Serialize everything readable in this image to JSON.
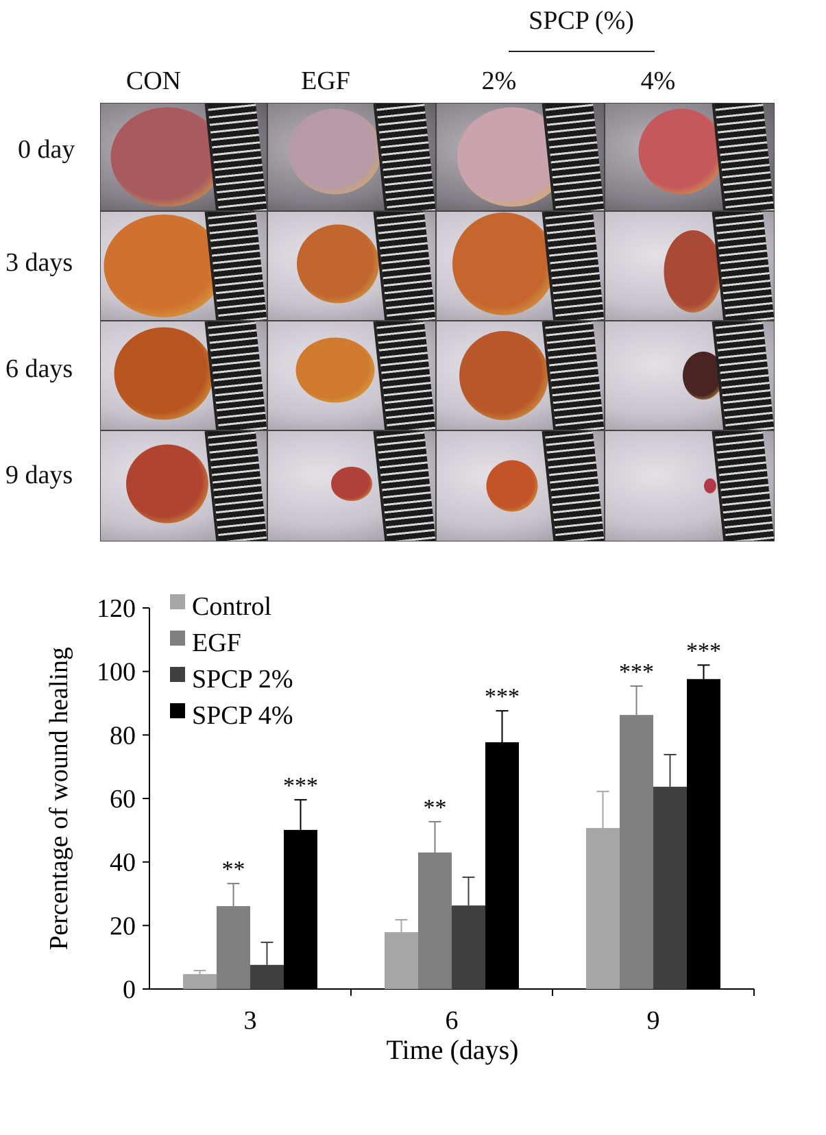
{
  "photo_panel": {
    "group_header": "SPCP (%)",
    "columns": [
      "CON",
      "EGF",
      "2%",
      "4%"
    ],
    "rows": [
      "0 day",
      "3 days",
      "6 days",
      "9 days"
    ]
  },
  "chart_data": {
    "type": "bar",
    "xlabel": "Time (days)",
    "ylabel": "Percentage of wound healing",
    "categories": [
      "3",
      "6",
      "9"
    ],
    "ylim": [
      0,
      120
    ],
    "yticks": [
      "0",
      "20",
      "40",
      "60",
      "80",
      "100",
      "120"
    ],
    "grid": false,
    "legend_position": "top-left",
    "series": [
      {
        "name": "Control",
        "color": "#a6a6a6",
        "values": [
          4.7,
          17.9,
          50.7
        ],
        "errors": [
          1.1,
          3.9,
          11.5
        ],
        "significance": [
          "",
          "",
          ""
        ]
      },
      {
        "name": "EGF",
        "color": "#808080",
        "values": [
          26.1,
          43.0,
          86.3
        ],
        "errors": [
          7.1,
          9.7,
          9.1
        ],
        "significance": [
          "**",
          "**",
          "***"
        ]
      },
      {
        "name": "SPCP 2%",
        "color": "#404040",
        "values": [
          7.6,
          26.3,
          63.7
        ],
        "errors": [
          7.1,
          8.9,
          10.1
        ],
        "significance": [
          "",
          "",
          ""
        ]
      },
      {
        "name": "SPCP 4%",
        "color": "#000000",
        "values": [
          50.1,
          77.7,
          97.6
        ],
        "errors": [
          9.5,
          9.9,
          4.4
        ],
        "significance": [
          "***",
          "***",
          "***"
        ]
      }
    ]
  }
}
